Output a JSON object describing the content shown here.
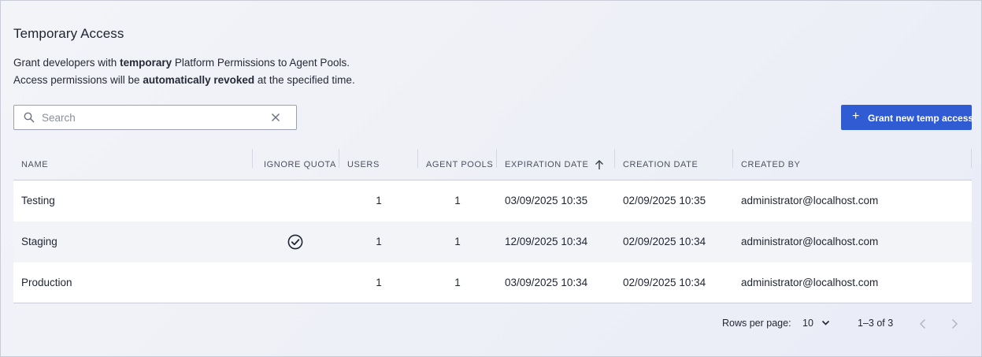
{
  "page": {
    "title": "Temporary Access",
    "description": {
      "line1_pre": "Grant developers with ",
      "line1_bold": "temporary",
      "line1_post": " Platform Permissions to Agent Pools.",
      "line2_pre": "Access permissions will be ",
      "line2_bold": "automatically revoked",
      "line2_post": " at the specified time."
    }
  },
  "search": {
    "placeholder": "Search",
    "value": "",
    "icon": "search-icon",
    "clear_icon": "close-icon"
  },
  "toolbar": {
    "grant_label": "Grant new temp access",
    "grant_icon": "plus-icon",
    "accent": "#2f5bd3"
  },
  "table": {
    "columns": {
      "name": "NAME",
      "ignore_quota": "IGNORE QUOTA",
      "users": "USERS",
      "agent_pools": "AGENT POOLS",
      "expiration_date": "EXPIRATION DATE",
      "creation_date": "CREATION DATE",
      "created_by": "CREATED BY"
    },
    "sort": {
      "column": "expiration_date",
      "direction": "ascending",
      "icon": "arrow-up-icon"
    },
    "rows": [
      {
        "name": "Testing",
        "ignore_quota": false,
        "users": "1",
        "agent_pools": "1",
        "expiration_date": "03/09/2025 10:35",
        "creation_date": "02/09/2025 10:35",
        "created_by": "administrator@localhost.com"
      },
      {
        "name": "Staging",
        "ignore_quota": true,
        "users": "1",
        "agent_pools": "1",
        "expiration_date": "12/09/2025 10:34",
        "creation_date": "02/09/2025 10:34",
        "created_by": "administrator@localhost.com"
      },
      {
        "name": "Production",
        "ignore_quota": false,
        "users": "1",
        "agent_pools": "1",
        "expiration_date": "03/09/2025 10:34",
        "creation_date": "02/09/2025 10:34",
        "created_by": "administrator@localhost.com"
      }
    ]
  },
  "pagination": {
    "rows_per_page_label": "Rows per page:",
    "rows_per_page": "10",
    "range_text": "1–3 of 3",
    "prev_icon": "chevron-left-icon",
    "next_icon": "chevron-right-icon"
  }
}
